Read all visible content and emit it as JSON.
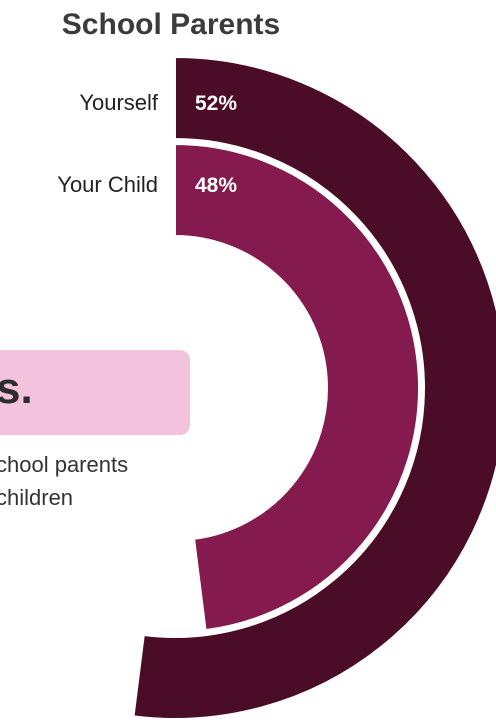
{
  "chart_data": {
    "type": "radial_bar",
    "title": "School Parents",
    "categories": [
      "Yourself",
      "Your Child"
    ],
    "values": [
      52,
      48
    ],
    "value_labels": [
      "52%",
      "48%"
    ],
    "colors": [
      "#4a0c26",
      "#841a4e"
    ],
    "scale": "percent of full circle"
  },
  "callout": {
    "text": "s.",
    "background": "#f3c3dd"
  },
  "body_text": {
    "line1": "chool parents",
    "line2": "children"
  }
}
